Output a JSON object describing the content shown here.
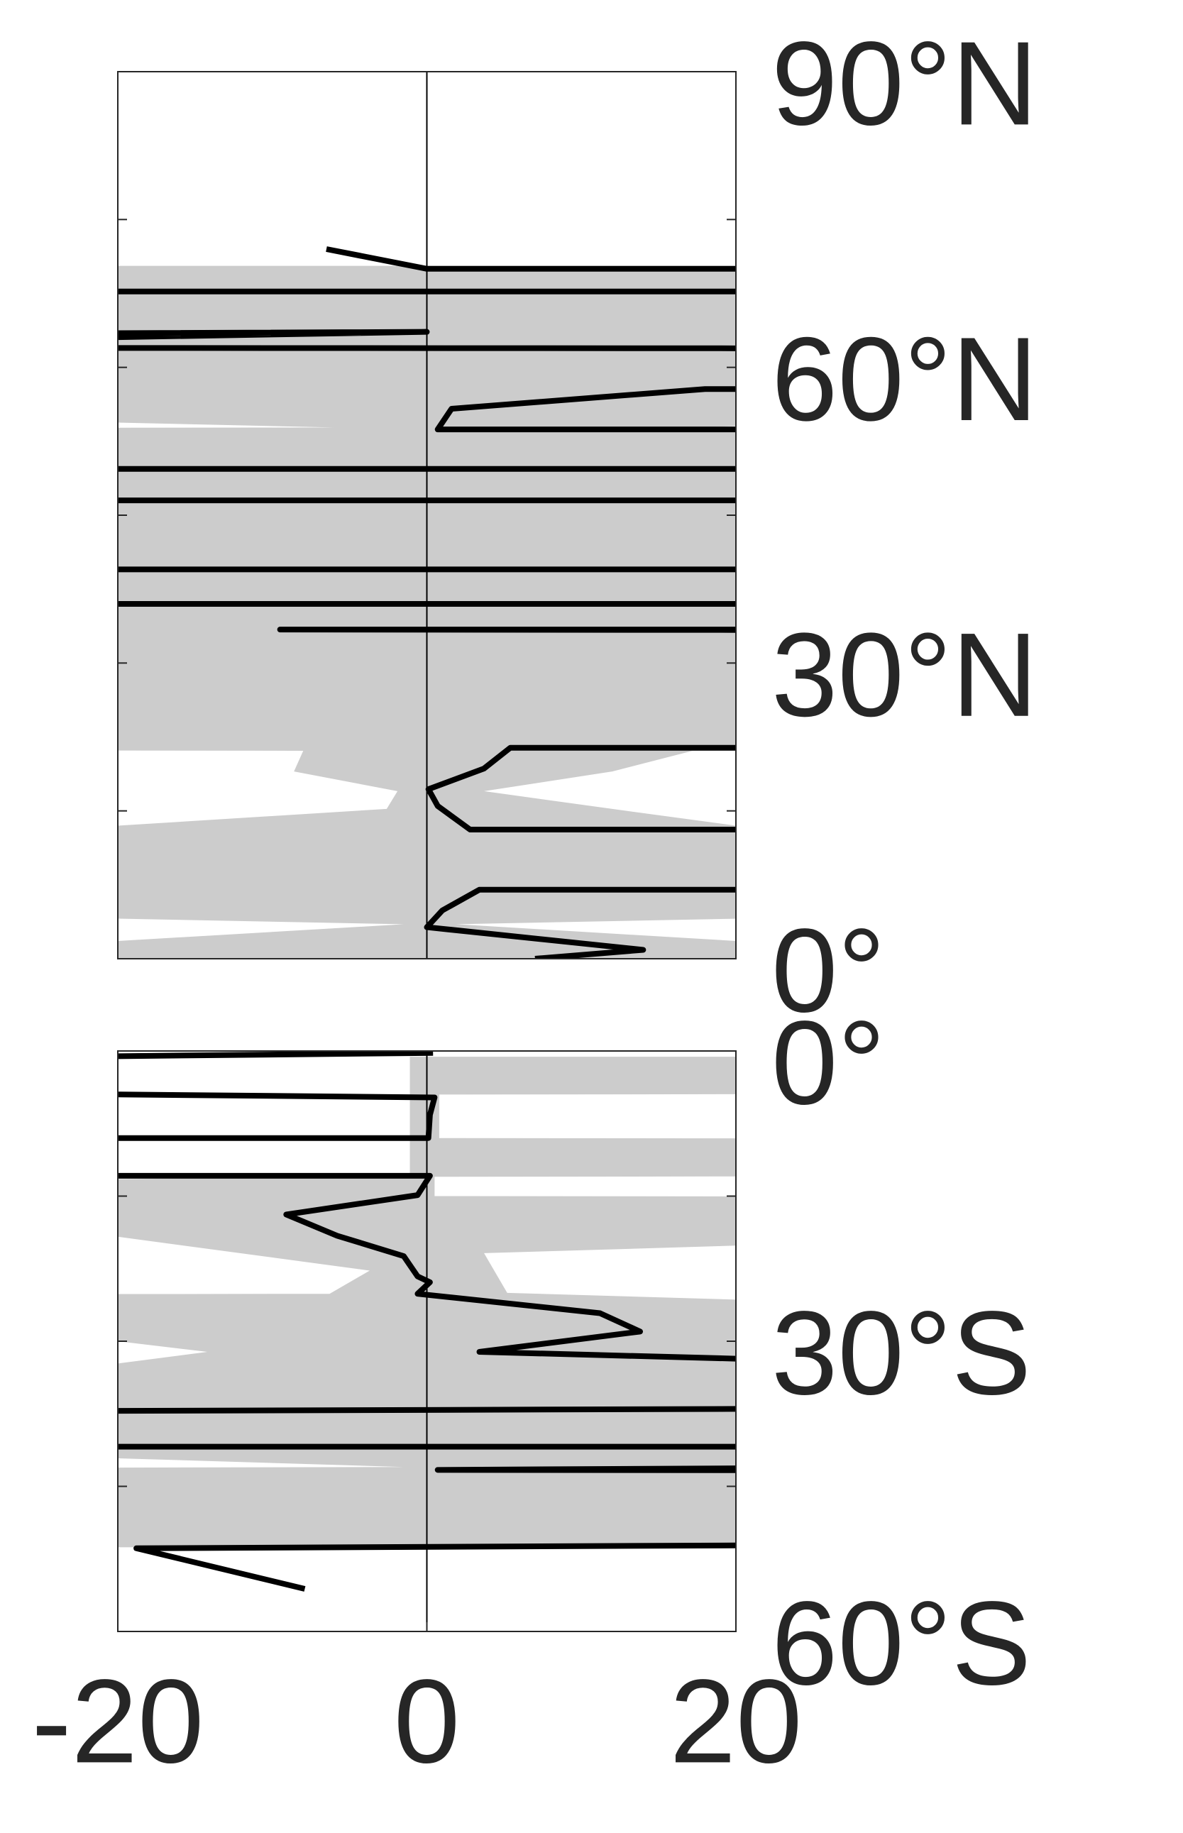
{
  "chart_data": [
    {
      "type": "line",
      "xlim": [
        -20,
        20
      ],
      "ylim": [
        0,
        90
      ],
      "yticks": [
        {
          "value": 0,
          "label": "0°"
        },
        {
          "value": 30,
          "label": "30°N"
        },
        {
          "value": 60,
          "label": "60°N"
        },
        {
          "value": 90,
          "label": "90°N"
        }
      ],
      "minor_yticks": [
        15,
        45,
        75
      ],
      "vline": 0,
      "color": "#000000",
      "line": {
        "x": [
          -6.5,
          0,
          60,
          60,
          -60,
          -60,
          0,
          -60,
          60,
          60,
          18,
          1.6,
          0.7,
          60,
          60,
          -60,
          -60,
          60,
          60,
          -60,
          -60,
          60,
          60,
          -9.5,
          60,
          60,
          5.4,
          3.7,
          0.1,
          0.7,
          2.8,
          60,
          60,
          3.4,
          1.0,
          0,
          14,
          7
        ],
        "y": [
          72.0,
          70.0,
          70.0,
          67.7,
          67.7,
          63.2,
          63.6,
          62.0,
          61.9,
          57.8,
          57.8,
          55.8,
          53.7,
          53.7,
          49.7,
          49.7,
          46.5,
          46.5,
          39.5,
          39.5,
          36.0,
          36.0,
          33.4,
          33.4,
          33.3,
          21.4,
          21.4,
          19.3,
          17.2,
          15.5,
          13.1,
          13.1,
          7.0,
          7.0,
          4.9,
          3.2,
          0.9,
          0
        ]
      },
      "band": {
        "color": "#cccccc",
        "lower": {
          "x": [
            -60,
            -60,
            -6,
            -60,
            -60,
            -8,
            -8.6,
            -1.9,
            -2.6,
            -20,
            -60,
            -60,
            -1.5,
            -20,
            -60,
            -60
          ],
          "y": [
            70.3,
            55.8,
            53.9,
            53.8,
            21.2,
            21.1,
            19.0,
            17.0,
            15.2,
            13.5,
            13.4,
            5.3,
            3.5,
            1.8,
            1.7,
            0
          ]
        },
        "upper": {
          "x": [
            60,
            60,
            17,
            60,
            60,
            17.2,
            12,
            3.7,
            12,
            20,
            60,
            60,
            1.9,
            20,
            60,
            60
          ],
          "y": [
            70.3,
            55.8,
            53.9,
            53.8,
            21.2,
            21.1,
            19.0,
            17.0,
            15.2,
            13.5,
            13.4,
            5.3,
            3.5,
            1.8,
            1.7,
            0
          ]
        }
      }
    },
    {
      "type": "line",
      "xlim": [
        -20,
        20
      ],
      "ylim": [
        -60,
        0
      ],
      "yticks": [
        {
          "value": 0,
          "label": "0°"
        },
        {
          "value": -30,
          "label": "30°S"
        },
        {
          "value": -60,
          "label": "60°S"
        }
      ],
      "minor_yticks": [
        -15,
        -45
      ],
      "xticks": [
        -20,
        0,
        20
      ],
      "vline": 0,
      "color": "#000000",
      "line": {
        "x": [
          0.4,
          -60,
          -60,
          0.5,
          0.2,
          0.1,
          -60,
          -60,
          0.2,
          -0.6,
          -9.1,
          -5.8,
          -1.5,
          -0.6,
          0.2,
          -0.6,
          11.2,
          13.8,
          3.4,
          60,
          60,
          -60,
          -60,
          60,
          60,
          0.7,
          60,
          60,
          -18.8,
          -7.9
        ],
        "y": [
          -0.2,
          -1.2,
          -3.9,
          -4.8,
          -6.6,
          -9.0,
          -9.0,
          -12.9,
          -12.9,
          -14.9,
          -16.9,
          -19.1,
          -21.2,
          -23.3,
          -23.9,
          -25.1,
          -27.1,
          -29.0,
          -31.1,
          -33.5,
          -36.8,
          -37.4,
          -40.9,
          -40.9,
          -42.8,
          -43.3,
          -43.4,
          -50.8,
          -51.4,
          -55.6
        ]
      },
      "band": {
        "color": "#cccccc",
        "lower": {
          "x": [
            -1.1,
            -1.1,
            -60,
            -60,
            -20,
            -3.7,
            -6.3,
            -60,
            -60,
            -20,
            -14.2,
            -20,
            -60,
            -60,
            -20,
            -1.5,
            -60,
            -60
          ],
          "y": [
            -0.6,
            -12.9,
            -14.0,
            -19.1,
            -19.2,
            -22.7,
            -25.1,
            -25.2,
            -29.9,
            -30.0,
            -31.1,
            -32.3,
            -32.4,
            -42.0,
            -42.1,
            -43.0,
            -43.2,
            -51.3
          ]
        },
        "upper": {
          "x": [
            60,
            60,
            0.8,
            0.8,
            60,
            60,
            0.5,
            0.5,
            60,
            60,
            3.7,
            5.2,
            20,
            60,
            60
          ],
          "y": [
            -0.6,
            -4.4,
            -4.5,
            -9.0,
            -9.1,
            -12.9,
            -13.0,
            -15.0,
            -15.1,
            -18.2,
            -20.9,
            -25.0,
            -25.7,
            -25.8,
            -51.3
          ]
        }
      }
    }
  ]
}
